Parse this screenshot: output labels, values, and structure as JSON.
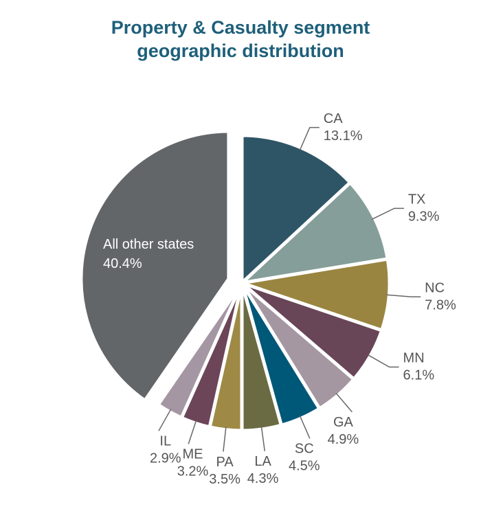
{
  "chart_data": {
    "type": "pie",
    "title": [
      "Property & Casualty segment",
      "geographic distribution"
    ],
    "categories": [
      "CA",
      "TX",
      "NC",
      "MN",
      "GA",
      "SC",
      "LA",
      "PA",
      "ME",
      "IL",
      "All other states"
    ],
    "values": [
      13.1,
      9.3,
      7.8,
      6.1,
      4.9,
      4.5,
      4.3,
      3.5,
      3.2,
      2.9,
      40.4
    ],
    "value_labels": [
      "13.1%",
      "9.3%",
      "7.8%",
      "6.1%",
      "4.9%",
      "4.5%",
      "4.3%",
      "3.5%",
      "3.2%",
      "2.9%",
      "40.4%"
    ],
    "colors": [
      "#2e5566",
      "#859e9a",
      "#9a8540",
      "#694558",
      "#a497a2",
      "#005878",
      "#6b6b43",
      "#9e8a45",
      "#6c4558",
      "#a496a2",
      "#636669"
    ]
  }
}
